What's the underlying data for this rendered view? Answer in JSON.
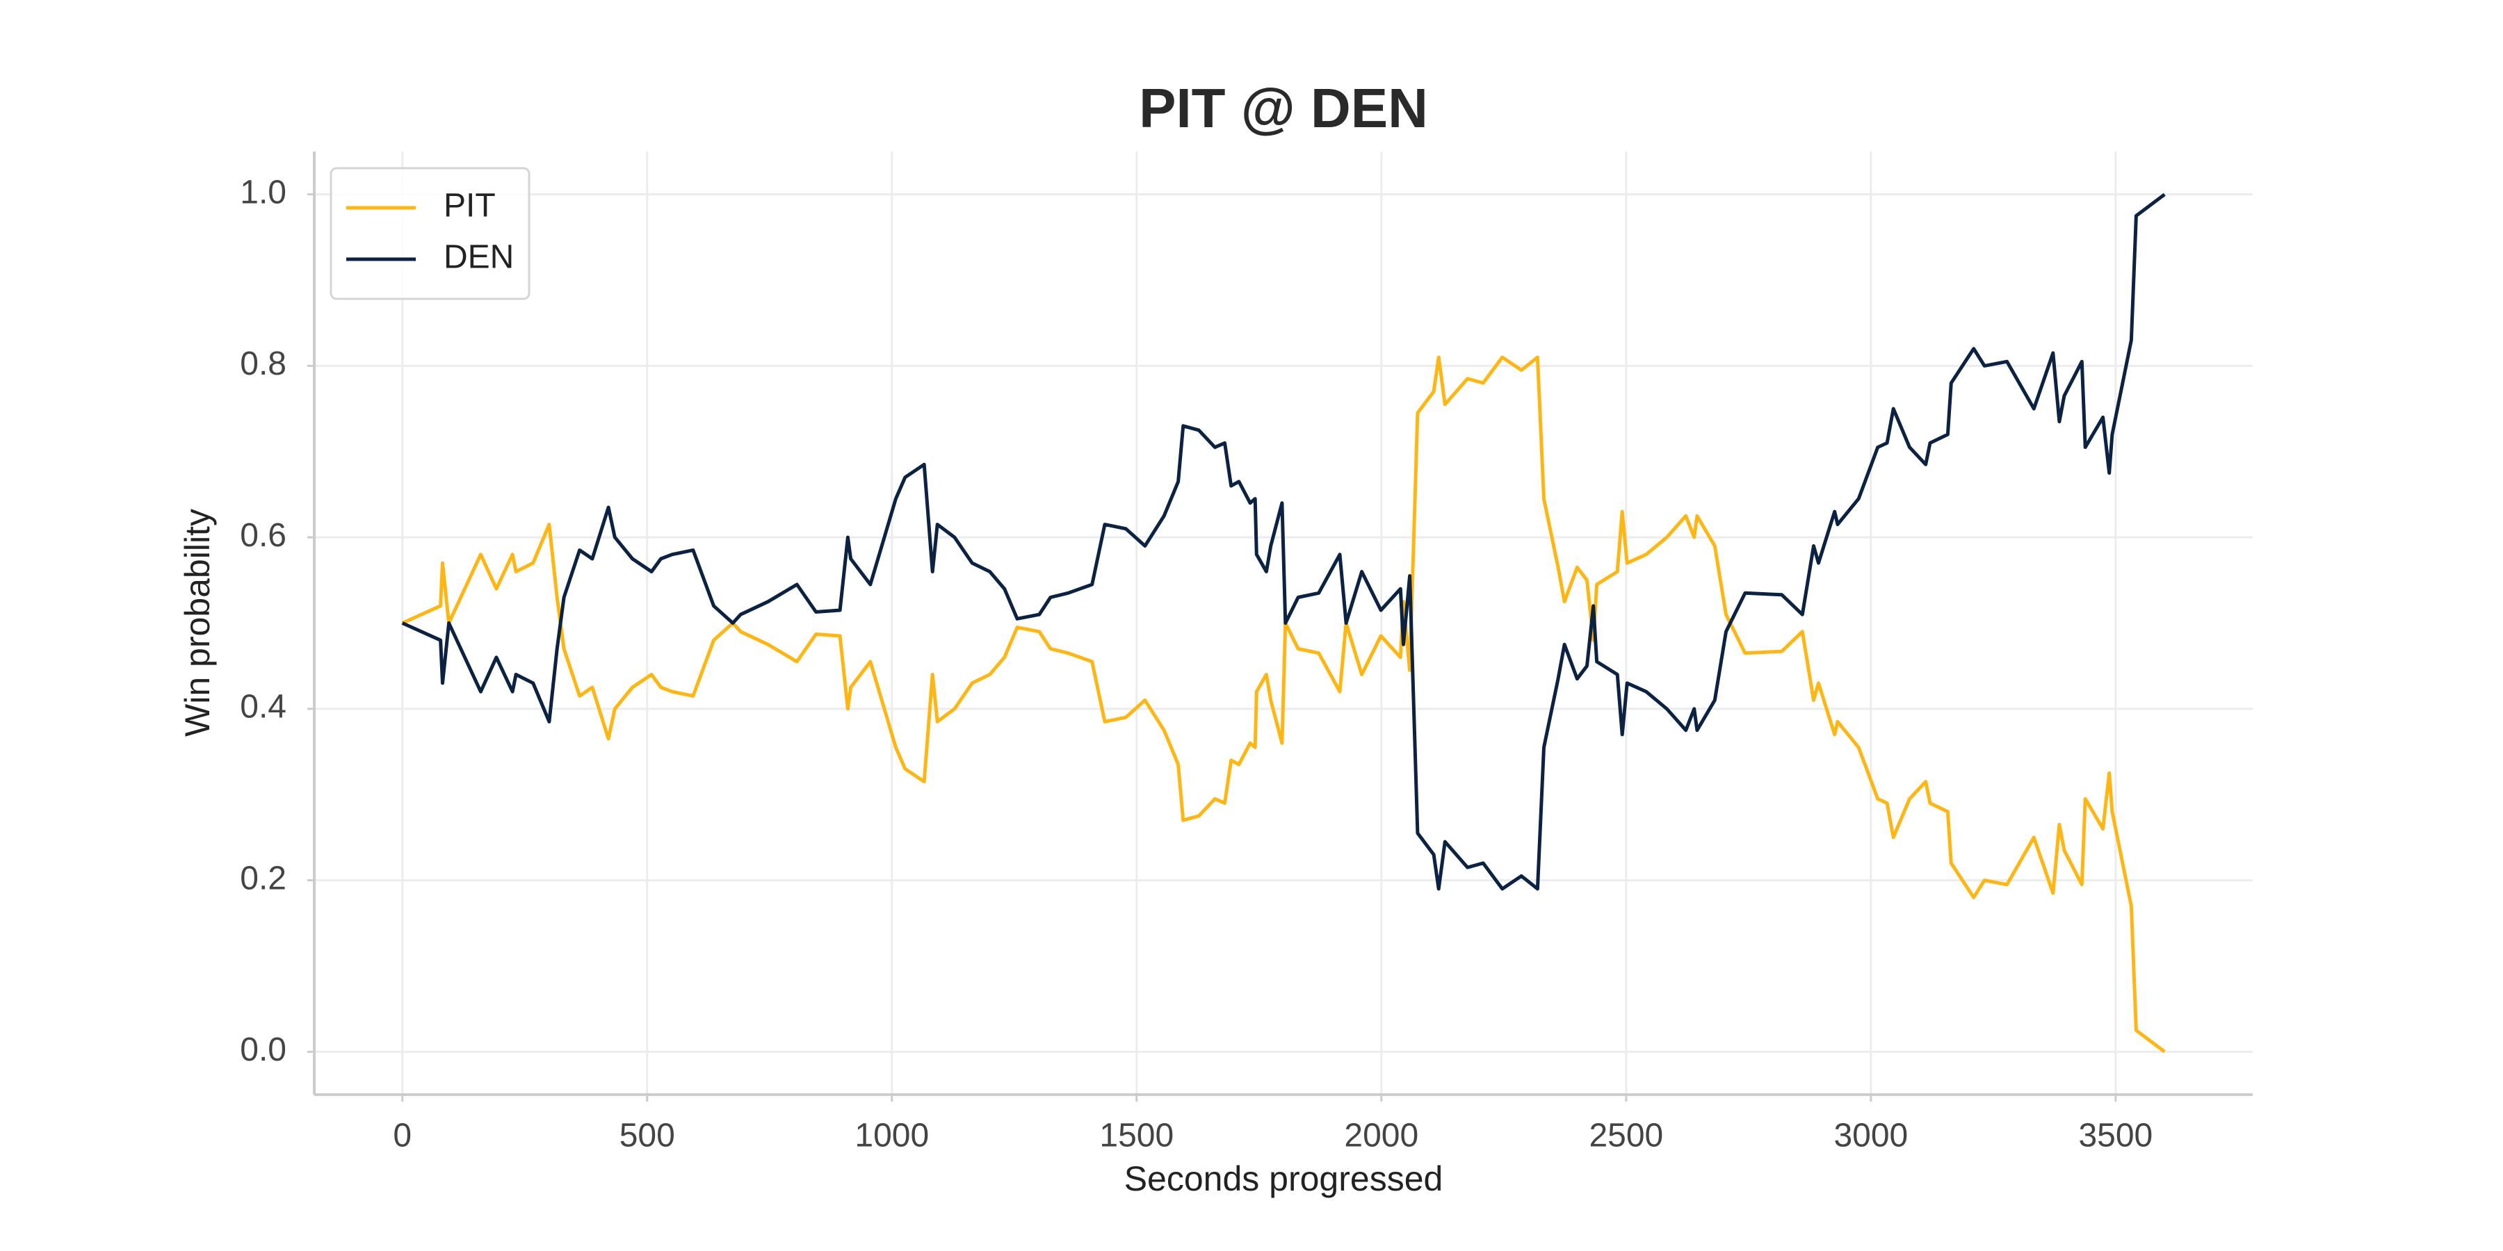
{
  "chart_data": {
    "type": "line",
    "title": "PIT @ DEN",
    "xlabel": "Seconds progressed",
    "ylabel": "Win probability",
    "x": [
      0,
      78,
      82,
      95,
      160,
      192,
      225,
      232,
      267,
      300,
      316,
      330,
      362,
      388,
      421,
      434,
      470,
      509,
      528,
      551,
      594,
      636,
      675,
      691,
      747,
      806,
      845,
      894,
      910,
      916,
      956,
      1008,
      1027,
      1066,
      1083,
      1093,
      1128,
      1164,
      1200,
      1230,
      1256,
      1301,
      1324,
      1360,
      1409,
      1435,
      1478,
      1517,
      1556,
      1585,
      1595,
      1627,
      1660,
      1680,
      1693,
      1709,
      1732,
      1742,
      1745,
      1765,
      1774,
      1797,
      1804,
      1830,
      1872,
      1915,
      1928,
      1960,
      1999,
      2039,
      2045,
      2058,
      2074,
      2107,
      2117,
      2130,
      2176,
      2208,
      2247,
      2286,
      2319,
      2332,
      2361,
      2374,
      2400,
      2420,
      2433,
      2440,
      2482,
      2492,
      2502,
      2541,
      2583,
      2622,
      2639,
      2645,
      2681,
      2704,
      2743,
      2818,
      2860,
      2883,
      2893,
      2926,
      2932,
      2975,
      3014,
      3033,
      3046,
      3079,
      3112,
      3121,
      3157,
      3164,
      3210,
      3232,
      3278,
      3333,
      3372,
      3385,
      3395,
      3431,
      3438,
      3474,
      3487,
      3493,
      3532,
      3542,
      3600
    ],
    "series": [
      {
        "name": "PIT",
        "color": "#FFB612",
        "values": [
          0.5,
          0.52,
          0.57,
          0.5,
          0.58,
          0.54,
          0.58,
          0.56,
          0.57,
          0.615,
          0.53,
          0.47,
          0.415,
          0.425,
          0.365,
          0.4,
          0.425,
          0.44,
          0.425,
          0.42,
          0.415,
          0.48,
          0.5,
          0.49,
          0.475,
          0.455,
          0.487,
          0.485,
          0.4,
          0.425,
          0.455,
          0.355,
          0.33,
          0.315,
          0.44,
          0.385,
          0.4,
          0.43,
          0.44,
          0.46,
          0.495,
          0.49,
          0.47,
          0.465,
          0.455,
          0.385,
          0.39,
          0.41,
          0.375,
          0.335,
          0.27,
          0.275,
          0.295,
          0.29,
          0.34,
          0.335,
          0.36,
          0.355,
          0.42,
          0.44,
          0.41,
          0.36,
          0.5,
          0.47,
          0.465,
          0.42,
          0.5,
          0.44,
          0.485,
          0.46,
          0.525,
          0.445,
          0.745,
          0.77,
          0.81,
          0.755,
          0.785,
          0.78,
          0.81,
          0.795,
          0.81,
          0.645,
          0.565,
          0.525,
          0.565,
          0.55,
          0.48,
          0.545,
          0.56,
          0.63,
          0.57,
          0.58,
          0.6,
          0.625,
          0.6,
          0.625,
          0.59,
          0.51,
          0.465,
          0.467,
          0.49,
          0.41,
          0.43,
          0.37,
          0.385,
          0.355,
          0.295,
          0.29,
          0.25,
          0.295,
          0.315,
          0.29,
          0.28,
          0.22,
          0.18,
          0.2,
          0.195,
          0.25,
          0.185,
          0.265,
          0.235,
          0.195,
          0.295,
          0.26,
          0.325,
          0.28,
          0.17,
          0.025,
          0
        ]
      },
      {
        "name": "DEN",
        "color": "#0B2243",
        "values": [
          0.5,
          0.48,
          0.43,
          0.5,
          0.42,
          0.46,
          0.42,
          0.44,
          0.43,
          0.385,
          0.47,
          0.53,
          0.585,
          0.575,
          0.635,
          0.6,
          0.575,
          0.56,
          0.575,
          0.58,
          0.585,
          0.52,
          0.5,
          0.51,
          0.525,
          0.545,
          0.513,
          0.515,
          0.6,
          0.575,
          0.545,
          0.645,
          0.67,
          0.685,
          0.56,
          0.615,
          0.6,
          0.57,
          0.56,
          0.54,
          0.505,
          0.51,
          0.53,
          0.535,
          0.545,
          0.615,
          0.61,
          0.59,
          0.625,
          0.665,
          0.73,
          0.725,
          0.705,
          0.71,
          0.66,
          0.665,
          0.64,
          0.645,
          0.58,
          0.56,
          0.59,
          0.64,
          0.5,
          0.53,
          0.535,
          0.58,
          0.5,
          0.56,
          0.515,
          0.54,
          0.475,
          0.555,
          0.255,
          0.23,
          0.19,
          0.245,
          0.215,
          0.22,
          0.19,
          0.205,
          0.19,
          0.355,
          0.435,
          0.475,
          0.435,
          0.45,
          0.52,
          0.455,
          0.44,
          0.37,
          0.43,
          0.42,
          0.4,
          0.375,
          0.4,
          0.375,
          0.41,
          0.49,
          0.535,
          0.533,
          0.51,
          0.59,
          0.57,
          0.63,
          0.615,
          0.645,
          0.705,
          0.71,
          0.75,
          0.705,
          0.685,
          0.71,
          0.72,
          0.78,
          0.82,
          0.8,
          0.805,
          0.75,
          0.815,
          0.735,
          0.765,
          0.805,
          0.705,
          0.74,
          0.675,
          0.72,
          0.83,
          0.975,
          1
        ]
      }
    ],
    "xlim": [
      -180,
      3780
    ],
    "ylim": [
      -0.05,
      1.05
    ],
    "xticks": [
      0,
      500,
      1000,
      1500,
      2000,
      2500,
      3000,
      3500
    ],
    "yticks": [
      {
        "value": 0,
        "label": "0.0"
      },
      0.2,
      0.4,
      0.6,
      0.8,
      {
        "value": 1,
        "label": "1.0"
      }
    ],
    "grid": true,
    "legend": "upper left"
  }
}
